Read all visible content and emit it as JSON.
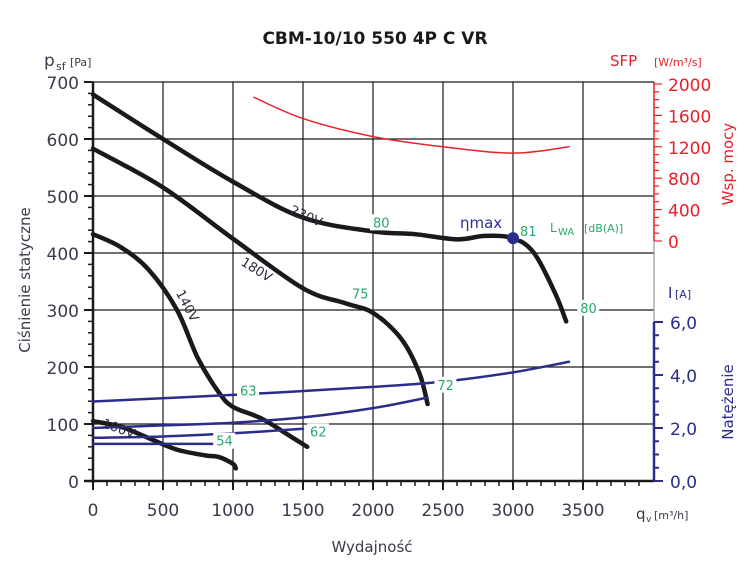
{
  "chart_data": {
    "type": "line",
    "title": "CBM-10/10 550 4P C VR",
    "xlabel": "Wydajność",
    "x_unit_label": "q",
    "x_unit_sub": "v",
    "x_unit": "[m³/h]",
    "xlim": [
      0,
      3900
    ],
    "x_ticks": [
      0,
      500,
      1000,
      1500,
      2000,
      2500,
      3000,
      3500
    ],
    "grid": true,
    "axes": {
      "pressure": {
        "label": "Ciśnienie statyczne",
        "unit_symbol": "p",
        "unit_sub": "sf",
        "unit": "[Pa]",
        "ylim": [
          0,
          700
        ],
        "ticks": [
          0,
          100,
          200,
          300,
          400,
          500,
          600,
          700
        ],
        "color": "#1a1a1a"
      },
      "sfp": {
        "label": "Wsp. mocy",
        "unit_symbol": "SFP",
        "unit": "[W/m³/s]",
        "ylim": [
          0,
          2000
        ],
        "ticks": [
          0,
          400,
          800,
          1200,
          1600,
          2000
        ],
        "color": "#e8202a"
      },
      "current": {
        "label": "Natężenie",
        "unit_symbol": "I",
        "unit": "[A]",
        "ylim": [
          0,
          6.0
        ],
        "ticks": [
          "0,0",
          "2,0",
          "4,0",
          "6,0"
        ],
        "tick_values": [
          0,
          2,
          4,
          6
        ],
        "color": "#2b2d8c"
      }
    },
    "series": [
      {
        "name": "230V",
        "axis": "pressure",
        "color": "#1a1a1a",
        "points": [
          [
            0,
            678
          ],
          [
            500,
            600
          ],
          [
            1000,
            525
          ],
          [
            1500,
            462
          ],
          [
            2000,
            438
          ],
          [
            2300,
            433
          ],
          [
            2600,
            424
          ],
          [
            2800,
            430
          ],
          [
            3000,
            426
          ],
          [
            3150,
            400
          ],
          [
            3300,
            330
          ],
          [
            3380,
            280
          ]
        ]
      },
      {
        "name": "180V",
        "axis": "pressure",
        "color": "#1a1a1a",
        "points": [
          [
            0,
            583
          ],
          [
            500,
            515
          ],
          [
            1000,
            425
          ],
          [
            1500,
            338
          ],
          [
            1800,
            312
          ],
          [
            2000,
            295
          ],
          [
            2200,
            250
          ],
          [
            2330,
            190
          ],
          [
            2390,
            135
          ]
        ]
      },
      {
        "name": "140V",
        "axis": "pressure",
        "color": "#1a1a1a",
        "points": [
          [
            0,
            433
          ],
          [
            200,
            410
          ],
          [
            400,
            370
          ],
          [
            600,
            300
          ],
          [
            750,
            215
          ],
          [
            900,
            155
          ],
          [
            1000,
            130
          ],
          [
            1200,
            110
          ],
          [
            1400,
            80
          ],
          [
            1530,
            60
          ]
        ]
      },
      {
        "name": "100V",
        "axis": "pressure",
        "color": "#1a1a1a",
        "points": [
          [
            0,
            105
          ],
          [
            200,
            95
          ],
          [
            400,
            75
          ],
          [
            600,
            55
          ],
          [
            800,
            45
          ],
          [
            900,
            42
          ],
          [
            1000,
            30
          ],
          [
            1020,
            22
          ]
        ]
      },
      {
        "name": "SFP",
        "axis": "sfp",
        "color": "#e8202a",
        "points": [
          [
            1150,
            1830
          ],
          [
            1500,
            1560
          ],
          [
            2000,
            1330
          ],
          [
            2500,
            1200
          ],
          [
            3000,
            1120
          ],
          [
            3400,
            1200
          ]
        ]
      },
      {
        "name": "I 230V",
        "axis": "current",
        "color": "#2b2d8c",
        "points": [
          [
            0,
            3.0
          ],
          [
            1000,
            3.25
          ],
          [
            2000,
            3.55
          ],
          [
            2500,
            3.75
          ],
          [
            3000,
            4.1
          ],
          [
            3400,
            4.5
          ]
        ]
      },
      {
        "name": "I 180V",
        "axis": "current",
        "color": "#2b2d8c",
        "points": [
          [
            0,
            2.0
          ],
          [
            500,
            2.1
          ],
          [
            1000,
            2.2
          ],
          [
            1500,
            2.4
          ],
          [
            2000,
            2.75
          ],
          [
            2390,
            3.15
          ]
        ]
      },
      {
        "name": "I 140V",
        "axis": "current",
        "color": "#2b2d8c",
        "points": [
          [
            0,
            1.63
          ],
          [
            500,
            1.68
          ],
          [
            1000,
            1.8
          ],
          [
            1500,
            1.97
          ]
        ]
      },
      {
        "name": "I 100V",
        "axis": "current",
        "color": "#2b2d8c",
        "points": [
          [
            0,
            1.4
          ],
          [
            500,
            1.4
          ],
          [
            1000,
            1.4
          ]
        ]
      }
    ],
    "curve_labels": [
      {
        "text": "230V",
        "x": 1400,
        "y": 470,
        "rotate": 24
      },
      {
        "text": "180V",
        "x": 1050,
        "y": 380,
        "rotate": 32
      },
      {
        "text": "140V",
        "x": 590,
        "y": 330,
        "rotate": 62
      },
      {
        "text": "100V",
        "x": 60,
        "y": 95,
        "rotate": 20
      }
    ],
    "annotations": [
      {
        "text": "80",
        "x": 2000,
        "y": 445,
        "color": "#2aa86b"
      },
      {
        "text": "75",
        "x": 1850,
        "y": 320,
        "color": "#2aa86b"
      },
      {
        "text": "80",
        "x": 3480,
        "y": 295,
        "color": "#2aa86b"
      },
      {
        "text": "81",
        "x": 3050,
        "y": 430,
        "color": "#2aa86b"
      },
      {
        "text": "63",
        "x": 1050,
        "y": 150,
        "color": "#2aa86b"
      },
      {
        "text": "72",
        "x": 2460,
        "y": 160,
        "color": "#2aa86b"
      },
      {
        "text": "62",
        "x": 1550,
        "y": 78,
        "color": "#2aa86b"
      },
      {
        "text": "54",
        "x": 880,
        "y": 62,
        "color": "#2aa86b"
      }
    ],
    "lwa_label": "L",
    "lwa_sub": "WA",
    "lwa_unit": "[dB(A)]",
    "eta_max": {
      "label": "ηmax",
      "x": 3000,
      "y": 426,
      "color": "#2b2d8c"
    }
  }
}
